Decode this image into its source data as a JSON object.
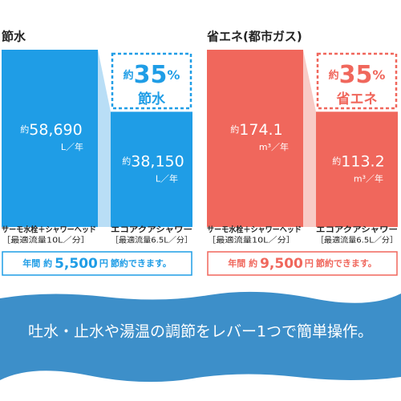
{
  "chart_data": [
    {
      "type": "bar",
      "title": "節水",
      "categories": [
        "サーモ水栓＋シャワーヘッド",
        "エコアクアシャワー"
      ],
      "category_notes": [
        "［最適流量10L／分］",
        "［最適流量6.5L／分］"
      ],
      "values": [
        58690,
        38150
      ],
      "value_labels": [
        "58,690",
        "38,150"
      ],
      "value_prefix": "約",
      "value_unit": "L／年",
      "color": "#1f9de6",
      "connector_color": "#b9def6",
      "callout": {
        "prefix": "約",
        "value": "35",
        "unit": "%",
        "label": "節水"
      },
      "summary": {
        "prefix": "年間 約",
        "value": "5,500",
        "unit": "円",
        "suffix": "節約できます。"
      }
    },
    {
      "type": "bar",
      "title": "省エネ(都市ガス)",
      "categories": [
        "サーモ水栓＋シャワーヘッド",
        "エコアクアシャワー"
      ],
      "category_notes": [
        "［最適流量10L／分］",
        "［最適流量6.5L／分］"
      ],
      "values": [
        174.1,
        113.2
      ],
      "value_prefix": "約",
      "value_unit": "m³／年",
      "color": "#f0675c",
      "connector_color": "#f8cbc6",
      "callout": {
        "prefix": "約",
        "value": "35",
        "unit": "%",
        "label": "省エネ"
      },
      "summary": {
        "prefix": "年間 約",
        "value": "9,500",
        "unit": "円",
        "suffix": "節約できます。"
      }
    }
  ],
  "banner": {
    "text": "吐水・止水や湯温の調節をレバー1つで簡単操作。"
  }
}
